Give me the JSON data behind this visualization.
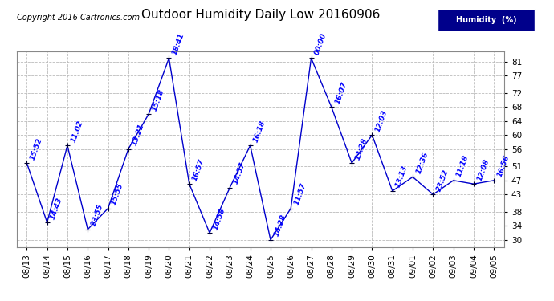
{
  "title": "Outdoor Humidity Daily Low 20160906",
  "copyright_text": "Copyright 2016 Cartronics.com",
  "legend_label": "Humidity  (%)",
  "legend_bg": "#00008b",
  "legend_fg": "#ffffff",
  "line_color": "#0000cc",
  "marker_color": "#000000",
  "background_color": "#ffffff",
  "grid_color": "#bbbbbb",
  "ylim": [
    28,
    84
  ],
  "yticks": [
    30,
    34,
    38,
    43,
    47,
    51,
    56,
    60,
    64,
    68,
    72,
    77,
    81
  ],
  "dates": [
    "08/13",
    "08/14",
    "08/15",
    "08/16",
    "08/17",
    "08/18",
    "08/19",
    "08/20",
    "08/21",
    "08/22",
    "08/23",
    "08/24",
    "08/25",
    "08/26",
    "08/27",
    "08/28",
    "08/29",
    "08/30",
    "08/31",
    "09/01",
    "09/02",
    "09/03",
    "09/04",
    "09/05"
  ],
  "values": [
    52,
    35,
    57,
    33,
    39,
    56,
    66,
    82,
    46,
    32,
    45,
    57,
    30,
    39,
    82,
    68,
    52,
    60,
    44,
    48,
    43,
    47,
    46,
    47
  ],
  "time_labels": [
    "15:52",
    "14:43",
    "11:02",
    "23:55",
    "15:55",
    "13:21",
    "15:18",
    "18:41",
    "16:57",
    "14:58",
    "14:57",
    "16:18",
    "14:28",
    "11:57",
    "00:00",
    "16:07",
    "13:28",
    "12:03",
    "13:13",
    "12:36",
    "23:52",
    "11:18",
    "12:08",
    "16:56"
  ],
  "title_fontsize": 11,
  "label_fontsize": 6.5,
  "tick_fontsize": 7.5,
  "copyright_fontsize": 7
}
